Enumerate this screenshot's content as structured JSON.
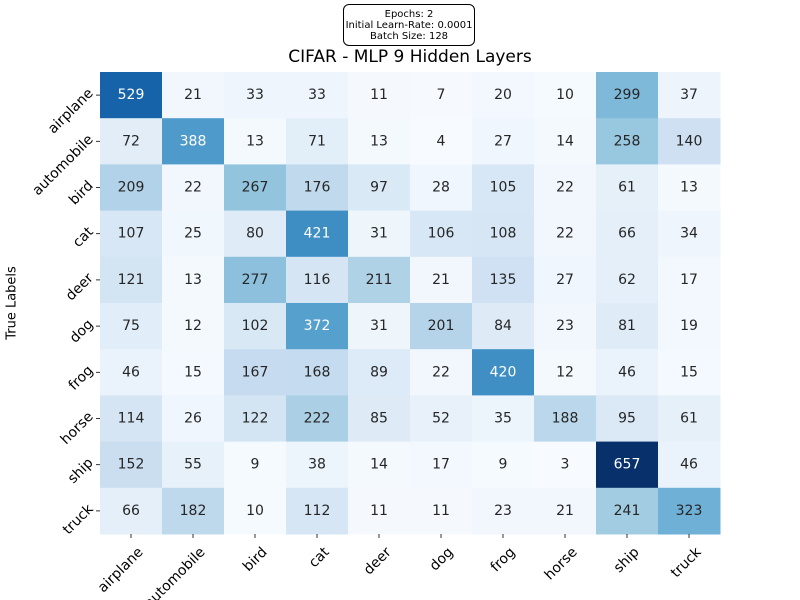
{
  "info_box": {
    "epochs": "Epochs: 2",
    "learn_rate": "Initial Learn-Rate: 0.0001",
    "batch_size": "Batch Size: 128"
  },
  "chart_data": {
    "type": "heatmap",
    "title": "CIFAR - MLP 9 Hidden Layers",
    "ylabel": "True Labels",
    "xlabel": "",
    "colormap": "Blues",
    "vmin": 3,
    "vmax": 657,
    "x_categories": [
      "airplane",
      "automobile",
      "bird",
      "cat",
      "deer",
      "dog",
      "frog",
      "horse",
      "ship",
      "truck"
    ],
    "y_categories": [
      "airplane",
      "automobile",
      "bird",
      "cat",
      "deer",
      "dog",
      "frog",
      "horse",
      "ship",
      "truck"
    ],
    "values": [
      [
        529,
        21,
        33,
        33,
        11,
        7,
        20,
        10,
        299,
        37
      ],
      [
        72,
        388,
        13,
        71,
        13,
        4,
        27,
        14,
        258,
        140
      ],
      [
        209,
        22,
        267,
        176,
        97,
        28,
        105,
        22,
        61,
        13
      ],
      [
        107,
        25,
        80,
        421,
        31,
        106,
        108,
        22,
        66,
        34
      ],
      [
        121,
        13,
        277,
        116,
        211,
        21,
        135,
        27,
        62,
        17
      ],
      [
        75,
        12,
        102,
        372,
        31,
        201,
        84,
        23,
        81,
        19
      ],
      [
        46,
        15,
        167,
        168,
        89,
        22,
        420,
        12,
        46,
        15
      ],
      [
        114,
        26,
        122,
        222,
        85,
        52,
        35,
        188,
        95,
        61
      ],
      [
        152,
        55,
        9,
        38,
        14,
        17,
        9,
        3,
        657,
        46
      ],
      [
        66,
        182,
        10,
        112,
        11,
        11,
        23,
        21,
        241,
        323
      ]
    ]
  }
}
